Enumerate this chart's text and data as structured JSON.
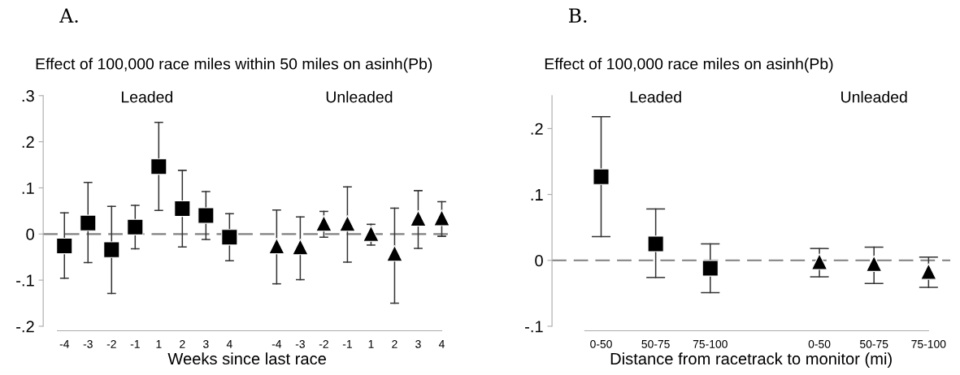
{
  "chart_data": [
    {
      "type": "scatter",
      "title": "A.",
      "subtitle": "Effect of 100,000 race miles within 50 miles on asinh(Pb)",
      "xlabel": "Weeks since last race",
      "categories": [
        "-4",
        "-3",
        "-2",
        "-1",
        "1",
        "2",
        "3",
        "4",
        null,
        "-4",
        "-3",
        "-2",
        "-1",
        "1",
        "2",
        "3",
        "4"
      ],
      "series": [
        {
          "color": "#000000",
          "marker": "square",
          "values": [
            -0.026,
            0.024,
            -0.034,
            0.015,
            0.146,
            0.055,
            0.04,
            -0.007,
            null,
            null,
            null,
            null,
            null,
            null,
            null,
            null,
            null
          ],
          "errors": [
            [
              -0.096,
              0.046
            ],
            [
              -0.062,
              0.112
            ],
            [
              -0.129,
              0.06
            ],
            [
              -0.032,
              0.062
            ],
            [
              0.051,
              0.242
            ],
            [
              -0.028,
              0.138
            ],
            [
              -0.012,
              0.092
            ],
            [
              -0.058,
              0.044
            ],
            null,
            null,
            null,
            null,
            null,
            null,
            null,
            null,
            null
          ]
        },
        {
          "color": "#000000",
          "marker": "triangle",
          "values": [
            null,
            null,
            null,
            null,
            null,
            null,
            null,
            null,
            null,
            -0.026,
            -0.028,
            0.023,
            0.023,
            0.001,
            -0.042,
            0.034,
            0.035
          ],
          "errors": [
            null,
            null,
            null,
            null,
            null,
            null,
            null,
            null,
            null,
            [
              -0.108,
              0.052
            ],
            [
              -0.099,
              0.037
            ],
            [
              -0.007,
              0.049
            ],
            [
              -0.061,
              0.102
            ],
            [
              -0.024,
              0.021
            ],
            [
              -0.15,
              0.056
            ],
            [
              -0.031,
              0.094
            ],
            [
              -0.005,
              0.07
            ]
          ]
        }
      ],
      "ylim": [
        -0.2,
        0.3
      ],
      "yticks": [
        {
          "value": -0.2,
          "label": "-.2"
        },
        {
          "value": -0.1,
          "label": "-.1"
        },
        0,
        {
          "value": 0.1,
          "label": ".1"
        },
        {
          "value": 0.2,
          "label": ".2"
        },
        {
          "value": 0.3,
          "label": ".3"
        }
      ],
      "annotations": [
        "Leaded",
        "Unleaded"
      ],
      "ref_lines": [
        {
          "axis": "y",
          "value": 0,
          "color": "#808080",
          "line_style": "dashed"
        }
      ],
      "grid": false,
      "legend": false
    },
    {
      "type": "scatter",
      "title": "B.",
      "subtitle": "Effect of 100,000 race miles on asinh(Pb)",
      "xlabel": "Distance from racetrack to monitor (mi)",
      "categories": [
        "0-50",
        "50-75",
        "75-100",
        null,
        "0-50",
        "50-75",
        "75-100"
      ],
      "series": [
        {
          "color": "#000000",
          "marker": "square",
          "values": [
            0.127,
            0.025,
            -0.012,
            null,
            null,
            null,
            null
          ],
          "errors": [
            [
              0.036,
              0.218
            ],
            [
              -0.026,
              0.078
            ],
            [
              -0.049,
              0.025
            ],
            null,
            null,
            null,
            null
          ]
        },
        {
          "color": "#000000",
          "marker": "triangle",
          "values": [
            null,
            null,
            null,
            null,
            -0.002,
            -0.005,
            -0.017
          ],
          "errors": [
            null,
            null,
            null,
            null,
            [
              -0.025,
              0.018
            ],
            [
              -0.035,
              0.02
            ],
            [
              -0.041,
              0.005
            ]
          ]
        }
      ],
      "ylim": [
        -0.1,
        0.25
      ],
      "yticks": [
        {
          "value": -0.1,
          "label": "-.1"
        },
        0,
        {
          "value": 0.1,
          "label": ".1"
        },
        {
          "value": 0.2,
          "label": ".2"
        }
      ],
      "annotations": [
        "Leaded",
        "Unleaded"
      ],
      "ref_lines": [
        {
          "axis": "y",
          "value": 0,
          "color": "#808080",
          "line_style": "dashed"
        }
      ],
      "grid": false,
      "legend": false
    }
  ]
}
